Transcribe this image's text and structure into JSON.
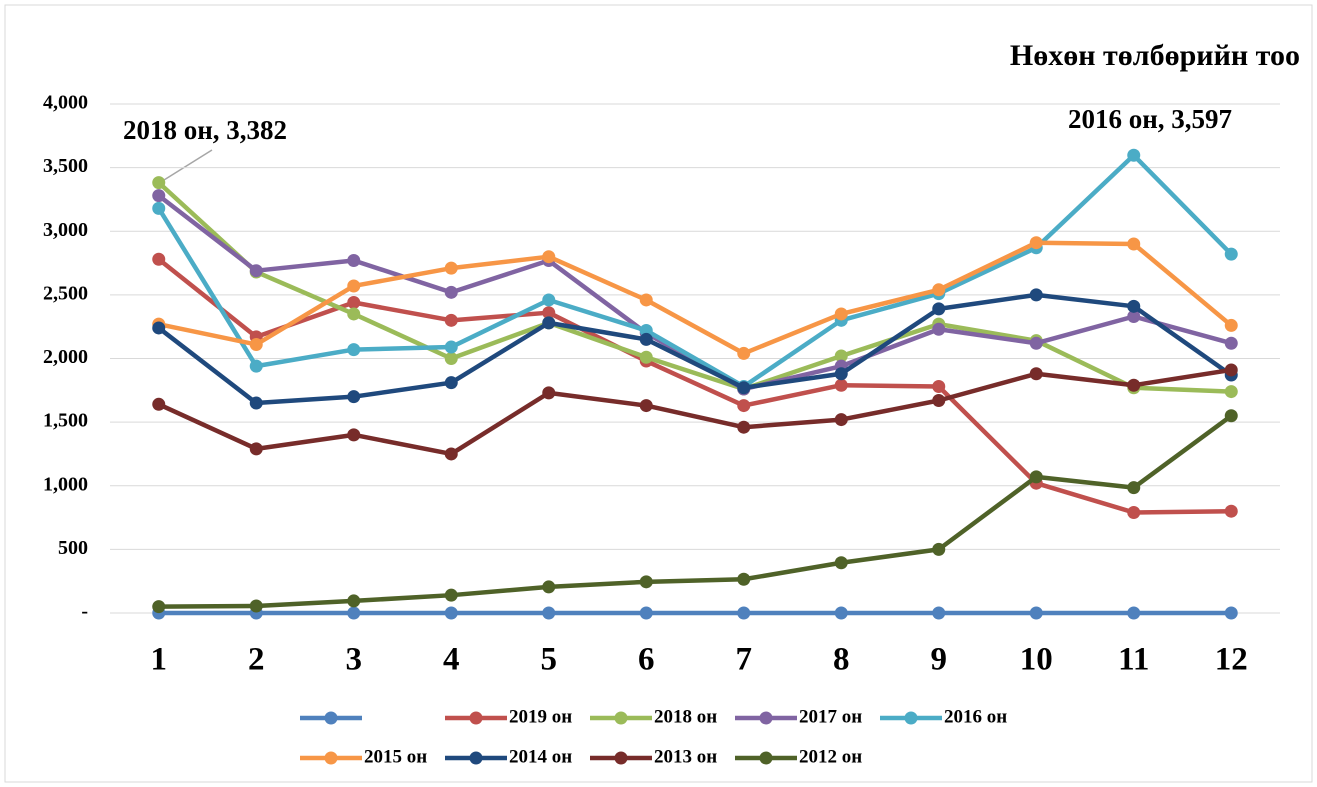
{
  "chart_data": {
    "type": "line",
    "title": "Нөхөн төлбөрийн тоо",
    "categories": [
      "1",
      "2",
      "3",
      "4",
      "5",
      "6",
      "7",
      "8",
      "9",
      "10",
      "11",
      "12"
    ],
    "series": [
      {
        "color": "#4f81bd",
        "values": [
          0,
          0,
          0,
          0,
          0,
          0,
          0,
          0,
          0,
          0,
          0,
          0
        ]
      },
      {
        "name": "2019 он",
        "color": "#c0504d",
        "values": [
          2780,
          2170,
          2440,
          2300,
          2360,
          1980,
          1630,
          1790,
          1780,
          1020,
          790,
          800
        ]
      },
      {
        "name": "2018 он",
        "color": "#9bbb59",
        "values": [
          3382,
          2680,
          2350,
          2000,
          2280,
          2010,
          1760,
          2020,
          2270,
          2140,
          1770,
          1740
        ]
      },
      {
        "name": "2017 он",
        "color": "#8064a2",
        "values": [
          3280,
          2690,
          2770,
          2520,
          2770,
          2200,
          1760,
          1940,
          2230,
          2120,
          2330,
          2120
        ]
      },
      {
        "name": "2016 он",
        "color": "#4bacc6",
        "values": [
          3180,
          1940,
          2070,
          2090,
          2460,
          2220,
          1780,
          2300,
          2510,
          2870,
          3597,
          2820
        ]
      },
      {
        "name": "2015 он",
        "color": "#f79646",
        "values": [
          2270,
          2110,
          2570,
          2710,
          2800,
          2460,
          2040,
          2350,
          2540,
          2910,
          2900,
          2260
        ]
      },
      {
        "name": "2014 он",
        "color": "#1f497d",
        "values": [
          2240,
          1650,
          1700,
          1810,
          2280,
          2150,
          1770,
          1880,
          2390,
          2500,
          2410,
          1870
        ]
      },
      {
        "name": "2013 он",
        "color": "#772c2a",
        "values": [
          1640,
          1290,
          1400,
          1250,
          1730,
          1630,
          1460,
          1520,
          1670,
          1880,
          1790,
          1910
        ]
      },
      {
        "name": "2012 он",
        "color": "#4f6228",
        "values": [
          50,
          55,
          95,
          140,
          205,
          245,
          265,
          395,
          500,
          1070,
          985,
          1550
        ]
      }
    ],
    "ylim": [
      0,
      4000
    ],
    "yticks": [
      {
        "value": 0,
        "label": "-"
      },
      500,
      {
        "value": 1000,
        "label": "1,000"
      },
      {
        "value": 1500,
        "label": "1,500"
      },
      {
        "value": 2000,
        "label": "2,000"
      },
      {
        "value": 2500,
        "label": "2,500"
      },
      {
        "value": 3000,
        "label": "3,000"
      },
      {
        "value": 3500,
        "label": "3,500"
      },
      {
        "value": 4000,
        "label": "4,000"
      }
    ],
    "grid": true,
    "annotations": [
      "2018 он,  3,382",
      "2016 он,  3,597"
    ]
  }
}
